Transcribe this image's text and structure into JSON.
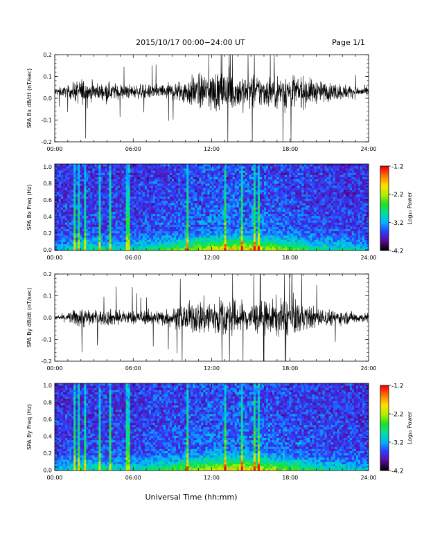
{
  "header": {
    "title": "2015/10/17   00:00−24:00 UT",
    "page": "Page 1/1"
  },
  "x_axis": {
    "xlabel": "Universal Time (hh:mm)",
    "ticks": [
      "00:00",
      "06:00",
      "12:00",
      "18:00",
      "24:00"
    ]
  },
  "colorbar": {
    "label": "Log₁₀ Power",
    "ticks": [
      "-1.2",
      "-2.2",
      "-3.2",
      "-4.2"
    ],
    "colors": [
      "#000000",
      "#5a0a9a",
      "#2f3cff",
      "#00b4ff",
      "#00e0a0",
      "#20e020",
      "#b4f000",
      "#ffe000",
      "#ff7a00",
      "#ff0000"
    ]
  },
  "chart_data": [
    {
      "type": "line",
      "ylabel": "SPA Bx dB/dt (nT/sec)",
      "xlim": [
        0,
        24
      ],
      "ylim": [
        -0.2,
        0.2
      ],
      "yticks": [
        "0.2",
        "0.1",
        "0.0",
        "-0.1",
        "-0.2"
      ],
      "xticks": [
        "00:00",
        "06:00",
        "12:00",
        "18:00",
        "24:00"
      ],
      "amplitude_envelope": {
        "x_hours": [
          0,
          1,
          2,
          3,
          4,
          5,
          6,
          7,
          8,
          9,
          10,
          11,
          12,
          13,
          14,
          15,
          16,
          17,
          18,
          19,
          20,
          21,
          22,
          23,
          24
        ],
        "amplitude": [
          0.03,
          0.05,
          0.12,
          0.07,
          0.08,
          0.07,
          0.06,
          0.06,
          0.07,
          0.08,
          0.12,
          0.15,
          0.18,
          0.18,
          0.16,
          0.15,
          0.14,
          0.15,
          0.17,
          0.13,
          0.1,
          0.08,
          0.07,
          0.05,
          0.04
        ]
      }
    },
    {
      "type": "heatmap",
      "ylabel": "SPA Bx Freq (Hz)",
      "xlim": [
        0,
        24
      ],
      "ylim": [
        0.0,
        1.0
      ],
      "yticks": [
        "1.0",
        "0.8",
        "0.6",
        "0.4",
        "0.2",
        "0.0"
      ],
      "xticks": [
        "00:00",
        "06:00",
        "12:00",
        "18:00",
        "24:00"
      ],
      "zlabel": "Log₁₀ Power",
      "zlim": [
        -4.2,
        -1.2
      ],
      "peak_band_hz": [
        0.0,
        0.2
      ],
      "peak_time_hours": [
        10,
        16
      ]
    },
    {
      "type": "line",
      "ylabel": "SPA By dB/dt (nT/sec)",
      "xlim": [
        0,
        24
      ],
      "ylim": [
        -0.2,
        0.2
      ],
      "yticks": [
        "0.2",
        "0.1",
        "0.0",
        "-0.1",
        "-0.2"
      ],
      "xticks": [
        "00:00",
        "06:00",
        "12:00",
        "18:00",
        "24:00"
      ],
      "amplitude_envelope": {
        "x_hours": [
          0,
          1,
          2,
          3,
          4,
          5,
          6,
          7,
          8,
          9,
          10,
          11,
          12,
          13,
          14,
          15,
          16,
          17,
          18,
          19,
          20,
          21,
          22,
          23,
          24
        ],
        "amplitude": [
          0.02,
          0.04,
          0.1,
          0.06,
          0.07,
          0.07,
          0.06,
          0.06,
          0.07,
          0.08,
          0.12,
          0.15,
          0.18,
          0.17,
          0.15,
          0.14,
          0.14,
          0.16,
          0.17,
          0.12,
          0.09,
          0.07,
          0.06,
          0.05,
          0.04
        ]
      }
    },
    {
      "type": "heatmap",
      "ylabel": "SPA By Freq (Hz)",
      "xlim": [
        0,
        24
      ],
      "ylim": [
        0.0,
        1.0
      ],
      "yticks": [
        "1.0",
        "0.8",
        "0.6",
        "0.4",
        "0.2",
        "0.0"
      ],
      "xticks": [
        "00:00",
        "06:00",
        "12:00",
        "18:00",
        "24:00"
      ],
      "zlabel": "Log₁₀ Power",
      "zlim": [
        -4.2,
        -1.2
      ],
      "peak_band_hz": [
        0.0,
        0.3
      ],
      "peak_time_hours": [
        10,
        16
      ]
    }
  ]
}
